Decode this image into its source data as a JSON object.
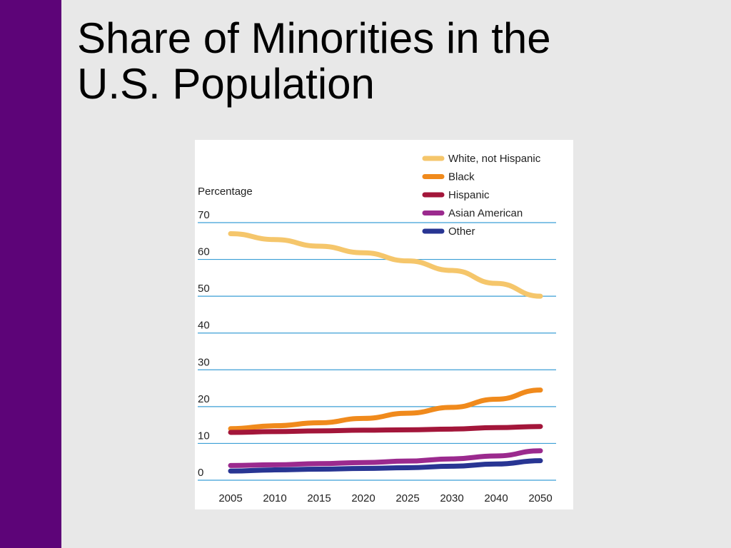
{
  "slide": {
    "title_line1": "Share of Minorities in the",
    "title_line2": "U.S. Population",
    "accent_color": "#5d0478",
    "background_color": "#e8e8e8"
  },
  "chart_data": {
    "type": "line",
    "title": "",
    "xlabel": "",
    "ylabel": "Percentage",
    "categories": [
      "2005",
      "2010",
      "2015",
      "2020",
      "2025",
      "2030",
      "2040",
      "2050"
    ],
    "ylim": [
      0,
      70
    ],
    "yticks": [
      0,
      10,
      20,
      30,
      40,
      50,
      60,
      70
    ],
    "grid": true,
    "legend_position": "top-right",
    "series": [
      {
        "name": "White, not Hispanic",
        "color": "#f5c66b",
        "values": [
          67,
          65.4,
          63.6,
          61.8,
          59.6,
          57,
          53.5,
          50
        ]
      },
      {
        "name": "Black",
        "color": "#f08a1c",
        "values": [
          14,
          14.8,
          15.6,
          16.8,
          18.2,
          19.8,
          22,
          24.5
        ]
      },
      {
        "name": "Hispanic",
        "color": "#a3163a",
        "values": [
          13,
          13.2,
          13.4,
          13.6,
          13.7,
          13.9,
          14.3,
          14.6
        ]
      },
      {
        "name": "Asian American",
        "color": "#9b2a8e",
        "values": [
          4,
          4.2,
          4.5,
          4.8,
          5.2,
          5.8,
          6.6,
          8
        ]
      },
      {
        "name": "Other",
        "color": "#283593",
        "values": [
          2.5,
          2.8,
          3,
          3.2,
          3.4,
          3.8,
          4.4,
          5.3
        ]
      }
    ]
  }
}
